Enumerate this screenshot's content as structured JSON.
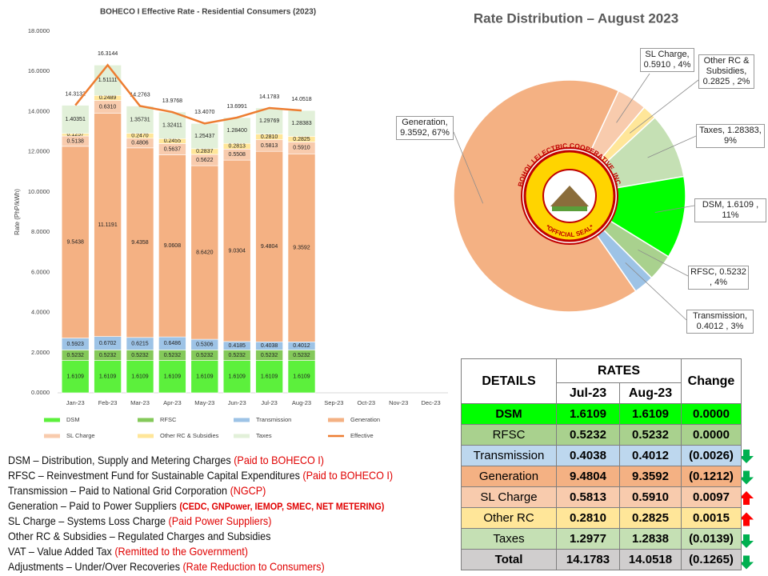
{
  "chart_data": [
    {
      "type": "bar",
      "stacked": true,
      "title": "BOHECO I Effective Rate - Residential Consumers (2023)",
      "y_label": "Rate (PhP/kWh)",
      "categories": [
        "Jan-23",
        "Feb-23",
        "Mar-23",
        "Apr-23",
        "May-23",
        "Jun-23",
        "Jul-23",
        "Aug-23",
        "Sep-23",
        "Oct-23",
        "Nov-23",
        "Dec-23"
      ],
      "ylim": [
        0,
        18
      ],
      "yticks": [
        {
          "value": 0,
          "label": "0.0000"
        },
        {
          "value": 2,
          "label": "2.0000"
        },
        {
          "value": 4,
          "label": "4.0000"
        },
        {
          "value": 6,
          "label": "6.0000"
        },
        {
          "value": 8,
          "label": "8.0000"
        },
        {
          "value": 10,
          "label": "10.0000"
        },
        {
          "value": 12,
          "label": "12.0000"
        },
        {
          "value": 14,
          "label": "14.0000"
        },
        {
          "value": 16,
          "label": "16.0000"
        },
        {
          "value": 18,
          "label": "18.0000"
        }
      ],
      "series": [
        {
          "name": "DSM",
          "color": "#5cf03c",
          "values": [
            1.6109,
            1.6109,
            1.6109,
            1.6109,
            1.6109,
            1.6109,
            1.6109,
            1.6109,
            null,
            null,
            null,
            null
          ],
          "value_labels": [
            "1.6109",
            "1.6109",
            "1.6109",
            "1.6109",
            "1.6109",
            "1.6109",
            "1.6109",
            "1.6109",
            null,
            null,
            null,
            null
          ]
        },
        {
          "name": "RFSC",
          "color": "#84c95a",
          "values": [
            0.5232,
            0.5232,
            0.5232,
            0.5232,
            0.5232,
            0.5232,
            0.5232,
            0.5232,
            null,
            null,
            null,
            null
          ],
          "value_labels": [
            "0.5232",
            "0.5232",
            "0.5232",
            "0.5232",
            "0.5232",
            "0.5232",
            "0.5232",
            "0.5232",
            null,
            null,
            null,
            null
          ]
        },
        {
          "name": "Transmission",
          "color": "#9dc3e6",
          "values": [
            0.5923,
            0.6702,
            0.6215,
            0.6486,
            0.5306,
            0.4185,
            0.4038,
            0.4012,
            null,
            null,
            null,
            null
          ],
          "value_labels": [
            "0.5923",
            "0.6702",
            "0.6215",
            "0.6486",
            "0.5306",
            "0.4185",
            "0.4038",
            "0.4012",
            null,
            null,
            null,
            null
          ]
        },
        {
          "name": "Generation",
          "color": "#f4b183",
          "values": [
            9.5438,
            11.1191,
            9.4358,
            9.0608,
            8.642,
            9.0304,
            9.4804,
            9.3592,
            null,
            null,
            null,
            null
          ],
          "value_labels": [
            "9.5438",
            "11.1191",
            "9.4358",
            "9.0608",
            "8.6420",
            "9.0304",
            "9.4804",
            "9.3592",
            null,
            null,
            null,
            null
          ]
        },
        {
          "name": "SL Charge",
          "color": "#f8cbad",
          "values": [
            0.5138,
            0.631,
            0.4806,
            0.5637,
            0.5622,
            0.5508,
            0.5813,
            0.591,
            null,
            null,
            null,
            null
          ],
          "value_labels": [
            "0.5138",
            "0.6310",
            "0.4806",
            "0.5637",
            "0.5622",
            "0.5508",
            "0.5813",
            "0.5910",
            null,
            null,
            null,
            null
          ]
        },
        {
          "name": "Other RC & Subsidies",
          "color": "#ffe699",
          "values": [
            0.1257,
            0.2489,
            0.247,
            0.2455,
            0.2837,
            0.2813,
            0.281,
            0.2825,
            null,
            null,
            null,
            null
          ],
          "value_labels": [
            "0.1257",
            "0.2489",
            "0.2470",
            "0.2455",
            "0.2837",
            "0.2813",
            "0.2810",
            "0.2825",
            null,
            null,
            null,
            null
          ]
        },
        {
          "name": "Taxes",
          "color": "#e2f0d9",
          "values": [
            1.40351,
            1.51111,
            1.35731,
            1.32411,
            1.25437,
            1.284,
            1.29769,
            1.28383,
            null,
            null,
            null,
            null
          ],
          "value_labels": [
            "1.40351",
            "1.51111",
            "1.35731",
            "1.32411",
            "1.25437",
            "1.28400",
            "1.29769",
            "1.28383",
            null,
            null,
            null,
            null
          ]
        },
        {
          "name": "Effective",
          "type": "line",
          "color": "#ed7d31",
          "values": [
            14.3132,
            16.3144,
            14.2763,
            13.9768,
            13.407,
            13.6991,
            14.1783,
            14.0518,
            null,
            null,
            null,
            null
          ],
          "value_labels": [
            "14.3132",
            "16.3144",
            "14.2763",
            "13.9768",
            "13.4070",
            "13.6991",
            "14.1783",
            "14.0518",
            null,
            null,
            null,
            null
          ]
        }
      ]
    },
    {
      "type": "pie",
      "title": "Rate Distribution – August 2023",
      "categories": [
        "SL Charge",
        "Other RC & Subsidies",
        "Taxes",
        "DSM",
        "RFSC",
        "Transmission",
        "Generation"
      ],
      "values": [
        0.591,
        0.2825,
        1.28383,
        1.6109,
        0.5232,
        0.4012,
        9.3592
      ],
      "value_labels": [
        "SL Charge, 0.5910 , 4%",
        "Other RC & Subsidies, 0.2825 , 2%",
        "Taxes, 1.28383, 9%",
        "DSM, 1.6109 , 11%",
        "RFSC, 0.5232 , 4%",
        "Transmission, 0.4012 , 3%",
        "Generation, 9.3592, 67%"
      ],
      "colors": [
        "#f8cbad",
        "#ffe699",
        "#c5e0b4",
        "#00ff00",
        "#a9d18e",
        "#9dc3e6",
        "#f4b183"
      ]
    }
  ],
  "seal": {
    "name": "BOHOL I ELECTRIC COOPERATIVE, INC.",
    "motto": "*OFFICIAL SEAL*"
  },
  "table": {
    "header": {
      "details": "DETAILS",
      "rates": "RATES",
      "change": "Change",
      "months": [
        "Jul-23",
        "Aug-23"
      ]
    },
    "rows": [
      {
        "label": "DSM",
        "jul": "1.6109",
        "aug": "1.6109",
        "change": "0.0000",
        "color": "#00ff00"
      },
      {
        "label": "RFSC",
        "jul": "0.5232",
        "aug": "0.5232",
        "change": "0.0000",
        "color": "#a9d18e"
      },
      {
        "label": "Transmission",
        "jul": "0.4038",
        "aug": "0.4012",
        "change": "(0.0026)",
        "color": "#bdd7ee",
        "arrow": "down"
      },
      {
        "label": "Generation",
        "jul": "9.4804",
        "aug": "9.3592",
        "change": "(0.1212)",
        "color": "#f4b183",
        "arrow": "down"
      },
      {
        "label": "SL Charge",
        "jul": "0.5813",
        "aug": "0.5910",
        "change": "0.0097",
        "color": "#f8cbad",
        "arrow": "up"
      },
      {
        "label": "Other RC",
        "jul": "0.2810",
        "aug": "0.2825",
        "change": "0.0015",
        "color": "#ffe699",
        "arrow": "up"
      },
      {
        "label": "Taxes",
        "jul": "1.2977",
        "aug": "1.2838",
        "change": "(0.0139)",
        "color": "#c5e0b4",
        "arrow": "down"
      },
      {
        "label": "Total",
        "jul": "14.1783",
        "aug": "14.0518",
        "change": "(0.1265)",
        "color": "#d0cece",
        "arrow": "down"
      }
    ]
  },
  "notes": [
    {
      "text": "DSM – Distribution, Supply and Metering Charges ",
      "note": "(Paid to BOHECO I)"
    },
    {
      "text": "RFSC – Reinvestment Fund for Sustainable Capital Expenditures ",
      "note": "(Paid to BOHECO I)"
    },
    {
      "text": "Transmission – Paid to National Grid Corporation ",
      "note": "(NGCP)"
    },
    {
      "text": "Generation – Paid to Power Suppliers ",
      "note": "(CEDC, GNPower,  IEMOP, SMEC, NET METERING)"
    },
    {
      "text": "SL Charge – Systems Loss Charge ",
      "note": "(Paid Power Suppliers)"
    },
    {
      "text": "Other RC & Subsidies – Regulated Charges and Subsidies"
    },
    {
      "text": "VAT – Value Added Tax ",
      "note": "(Remitted to the Government)"
    },
    {
      "text": "Adjustments – Under/Over Recoveries ",
      "note": "(Rate Reduction to Consumers)"
    }
  ]
}
